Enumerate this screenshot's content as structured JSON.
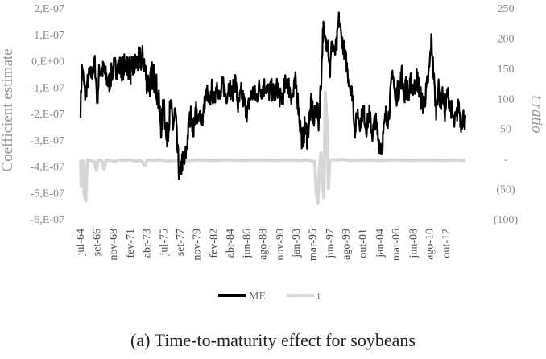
{
  "caption": "(a) Time-to-maturity effect for soybeans",
  "chart_data": {
    "type": "line",
    "ylabel_left": "Coefficient estimate",
    "ylabel_right": "t ratio",
    "left_ticks": [
      "2,E-07",
      "1,E-07",
      "0,E+00",
      "-1,E-07",
      "-2,E-07",
      "-3,E-07",
      "-4,E-07",
      "-5,E-07",
      "-6,E-07"
    ],
    "right_ticks": [
      "250",
      "200",
      "150",
      "100",
      "50",
      "-",
      "(50)",
      "(100)"
    ],
    "ylim_left": [
      -6e-07,
      2e-07
    ],
    "ylim_right": [
      -100,
      250
    ],
    "x_start_year": 1964.5,
    "x_end_year": 2015.5,
    "x_tick_labels": [
      "jul-64",
      "set-66",
      "nov-68",
      "fev-71",
      "abr-73",
      "jul-75",
      "set-77",
      "nov-79",
      "fev-82",
      "abr-84",
      "jun-86",
      "ago-88",
      "nov-90",
      "jan-93",
      "mar-95",
      "jun-97",
      "ago-99",
      "out-01",
      "jan-04",
      "mar-06",
      "jun-08",
      "ago-10",
      "out-12"
    ],
    "x_tick_years": [
      1964.5,
      1966.67,
      1968.83,
      1971.08,
      1973.25,
      1975.5,
      1977.67,
      1979.83,
      1982.08,
      1984.25,
      1986.42,
      1988.58,
      1990.83,
      1993.0,
      1995.17,
      1997.42,
      1999.58,
      2001.75,
      2004.0,
      2006.17,
      2008.42,
      2010.58,
      2012.75
    ],
    "legend_position": "bottom",
    "grid": false,
    "series": [
      {
        "name": "ME",
        "axis": "left",
        "color": "#000000",
        "points": [
          [
            1964.5,
            -1.8e-07
          ],
          [
            1964.7,
            -2e-08
          ],
          [
            1965.1,
            -1.3e-07
          ],
          [
            1965.6,
            -6e-08
          ],
          [
            1966.0,
            -5e-08
          ],
          [
            1966.4,
            -1e-08
          ],
          [
            1966.7,
            -1.5e-07
          ],
          [
            1967.0,
            -3e-08
          ],
          [
            1967.6,
            -4e-08
          ],
          [
            1968.2,
            -9e-08
          ],
          [
            1968.8,
            -3e-08
          ],
          [
            1969.5,
            -2e-08
          ],
          [
            1970.0,
            -3e-08
          ],
          [
            1970.6,
            -1e-08
          ],
          [
            1971.1,
            -4e-08
          ],
          [
            1971.6,
            -2e-08
          ],
          [
            1972.2,
            0.0
          ],
          [
            1972.8,
            1e-08
          ],
          [
            1973.2,
            -7e-08
          ],
          [
            1973.6,
            -9e-08
          ],
          [
            1974.0,
            -5e-08
          ],
          [
            1974.4,
            -8e-08
          ],
          [
            1974.8,
            -1.6e-07
          ],
          [
            1975.2,
            -2.6e-07
          ],
          [
            1975.5,
            -1.4e-07
          ],
          [
            1975.8,
            -3e-07
          ],
          [
            1976.1,
            -2.4e-07
          ],
          [
            1976.4,
            -1.7e-07
          ],
          [
            1976.7,
            -2.5e-07
          ],
          [
            1977.0,
            -1.9e-07
          ],
          [
            1977.3,
            -3.5e-07
          ],
          [
            1977.6,
            -4.5e-07
          ],
          [
            1977.9,
            -3.8e-07
          ],
          [
            1978.2,
            -3.9e-07
          ],
          [
            1978.5,
            -3.3e-07
          ],
          [
            1978.8,
            -2.4e-07
          ],
          [
            1979.1,
            -2e-07
          ],
          [
            1979.4,
            -2.7e-07
          ],
          [
            1979.7,
            -1.7e-07
          ],
          [
            1980.0,
            -2.4e-07
          ],
          [
            1980.3,
            -2e-07
          ],
          [
            1980.6,
            -2.3e-07
          ],
          [
            1980.9,
            -1.5e-07
          ],
          [
            1981.2,
            -1.2e-07
          ],
          [
            1981.5,
            -1.8e-07
          ],
          [
            1981.8,
            -1e-07
          ],
          [
            1982.1,
            -1.6e-07
          ],
          [
            1982.5,
            -8e-08
          ],
          [
            1982.9,
            -1.5e-07
          ],
          [
            1983.3,
            -8e-08
          ],
          [
            1983.7,
            -1.4e-07
          ],
          [
            1984.1,
            -9e-08
          ],
          [
            1984.5,
            -1.3e-07
          ],
          [
            1984.9,
            -7e-08
          ],
          [
            1985.3,
            -1.8e-07
          ],
          [
            1985.7,
            -1.2e-07
          ],
          [
            1986.1,
            -1.6e-07
          ],
          [
            1986.5,
            -2e-07
          ],
          [
            1986.9,
            -1.4e-07
          ],
          [
            1987.3,
            -1.2e-07
          ],
          [
            1987.7,
            -1.4e-07
          ],
          [
            1988.1,
            -1e-07
          ],
          [
            1988.5,
            -1.1e-07
          ],
          [
            1988.9,
            -9e-08
          ],
          [
            1989.3,
            -1.2e-07
          ],
          [
            1989.7,
            -1.1e-07
          ],
          [
            1990.1,
            -1.3e-07
          ],
          [
            1990.5,
            -1e-07
          ],
          [
            1990.9,
            -1.5e-07
          ],
          [
            1991.3,
            -1.2e-07
          ],
          [
            1991.7,
            -7e-08
          ],
          [
            1992.1,
            -1.1e-07
          ],
          [
            1992.5,
            -1.4e-07
          ],
          [
            1992.9,
            -8e-08
          ],
          [
            1993.2,
            -1.6e-07
          ],
          [
            1993.5,
            -2.5e-07
          ],
          [
            1993.8,
            -3.1e-07
          ],
          [
            1994.1,
            -2.5e-07
          ],
          [
            1994.4,
            -2.9e-07
          ],
          [
            1994.7,
            -2.2e-07
          ],
          [
            1995.0,
            -1.6e-07
          ],
          [
            1995.3,
            -2.4e-07
          ],
          [
            1995.6,
            -1.7e-07
          ],
          [
            1995.9,
            -2.3e-07
          ],
          [
            1996.2,
            -1e-07
          ],
          [
            1996.5,
            1.2e-07
          ],
          [
            1996.8,
            6e-08
          ],
          [
            1997.1,
            1e-07
          ],
          [
            1997.4,
            -5e-08
          ],
          [
            1997.7,
            8e-08
          ],
          [
            1998.0,
            2e-08
          ],
          [
            1998.3,
            6e-08
          ],
          [
            1998.6,
            1.6e-07
          ],
          [
            1998.9,
            9e-08
          ],
          [
            1999.2,
            5e-08
          ],
          [
            1999.5,
            1e-08
          ],
          [
            1999.8,
            -6e-08
          ],
          [
            2000.1,
            -1e-07
          ],
          [
            2000.4,
            -1.3e-07
          ],
          [
            2000.7,
            -2.8e-07
          ],
          [
            2001.0,
            -1.9e-07
          ],
          [
            2001.4,
            -2.4e-07
          ],
          [
            2001.8,
            -1.8e-07
          ],
          [
            2002.2,
            -2.6e-07
          ],
          [
            2002.6,
            -2e-07
          ],
          [
            2003.0,
            -2.8e-07
          ],
          [
            2003.4,
            -2.2e-07
          ],
          [
            2003.8,
            -3e-07
          ],
          [
            2004.2,
            -3.3e-07
          ],
          [
            2004.5,
            -2.7e-07
          ],
          [
            2004.8,
            -2e-07
          ],
          [
            2005.1,
            -2.2e-07
          ],
          [
            2005.4,
            -1.3e-07
          ],
          [
            2005.7,
            -3e-08
          ],
          [
            2006.0,
            -1.5e-07
          ],
          [
            2006.3,
            -1.2e-07
          ],
          [
            2006.6,
            -1e-07
          ],
          [
            2006.9,
            -5e-08
          ],
          [
            2007.2,
            -1.3e-07
          ],
          [
            2007.5,
            -9e-08
          ],
          [
            2007.8,
            -1.4e-07
          ],
          [
            2008.1,
            -8e-08
          ],
          [
            2008.5,
            -1.1e-07
          ],
          [
            2008.9,
            -6e-08
          ],
          [
            2009.3,
            -1.3e-07
          ],
          [
            2009.7,
            -1.7e-07
          ],
          [
            2010.1,
            -1.2e-07
          ],
          [
            2010.5,
            -4e-08
          ],
          [
            2010.8,
            8e-08
          ],
          [
            2011.1,
            -6e-08
          ],
          [
            2011.4,
            -1.9e-07
          ],
          [
            2011.7,
            -1e-07
          ],
          [
            2012.0,
            -1.6e-07
          ],
          [
            2012.3,
            -1.3e-07
          ],
          [
            2012.6,
            -2e-07
          ],
          [
            2012.9,
            -1.2e-07
          ],
          [
            2013.2,
            -1.6e-07
          ],
          [
            2013.5,
            -1.9e-07
          ],
          [
            2013.8,
            -2.4e-07
          ],
          [
            2014.1,
            -2.1e-07
          ],
          [
            2014.4,
            -1.7e-07
          ],
          [
            2014.7,
            -2.4e-07
          ],
          [
            2015.0,
            -2.1e-07
          ],
          [
            2015.3,
            -2.4e-07
          ]
        ],
        "spread": [
          [
            1964.5,
            3.5e-08
          ],
          [
            1975.0,
            6e-08
          ],
          [
            1977.0,
            5e-08
          ],
          [
            1980.0,
            3.5e-08
          ],
          [
            1993.0,
            4.5e-08
          ],
          [
            1996.0,
            5e-08
          ],
          [
            2000.0,
            3e-08
          ],
          [
            2004.0,
            4e-08
          ],
          [
            2008.0,
            4.5e-08
          ],
          [
            2015.3,
            3.5e-08
          ]
        ]
      },
      {
        "name": "t",
        "axis": "right",
        "color": "#d6d6d6",
        "points": [
          [
            1964.5,
            -2
          ],
          [
            1964.6,
            -45
          ],
          [
            1964.8,
            -3
          ],
          [
            1965.0,
            -60
          ],
          [
            1965.2,
            -70
          ],
          [
            1965.4,
            -2
          ],
          [
            1965.8,
            -3
          ],
          [
            1966.3,
            -5
          ],
          [
            1966.6,
            -20
          ],
          [
            1966.8,
            -2
          ],
          [
            1967.3,
            -3
          ],
          [
            1967.6,
            -18
          ],
          [
            1967.9,
            -2
          ],
          [
            1968.5,
            -3
          ],
          [
            1969.0,
            -5
          ],
          [
            1969.5,
            -2
          ],
          [
            1970.2,
            -3
          ],
          [
            1971.0,
            -2
          ],
          [
            1971.8,
            -4
          ],
          [
            1972.5,
            -3
          ],
          [
            1973.0,
            -12
          ],
          [
            1973.3,
            -2
          ],
          [
            1974.0,
            -3
          ],
          [
            1975.0,
            -2
          ],
          [
            1976.0,
            -4
          ],
          [
            1977.0,
            -3
          ],
          [
            1978.0,
            -4
          ],
          [
            1979.0,
            -3
          ],
          [
            1980.0,
            -2
          ],
          [
            1982.0,
            -3
          ],
          [
            1984.0,
            -2
          ],
          [
            1986.0,
            -3
          ],
          [
            1988.0,
            -2
          ],
          [
            1990.0,
            -3
          ],
          [
            1992.0,
            -2
          ],
          [
            1993.5,
            -3
          ],
          [
            1994.5,
            -2
          ],
          [
            1995.4,
            -5
          ],
          [
            1995.6,
            -55
          ],
          [
            1995.8,
            -75
          ],
          [
            1996.0,
            -20
          ],
          [
            1996.2,
            10
          ],
          [
            1996.4,
            -40
          ],
          [
            1996.6,
            -65
          ],
          [
            1996.8,
            110
          ],
          [
            1997.0,
            60
          ],
          [
            1997.2,
            -50
          ],
          [
            1997.4,
            -3
          ],
          [
            1997.6,
            -2
          ],
          [
            1998.5,
            -2
          ],
          [
            1999.0,
            -1
          ],
          [
            1999.5,
            -2
          ],
          [
            2000.0,
            -3
          ],
          [
            2002.0,
            -2
          ],
          [
            2004.0,
            -3
          ],
          [
            2006.0,
            -2
          ],
          [
            2008.0,
            -3
          ],
          [
            2010.0,
            -2
          ],
          [
            2012.0,
            -3
          ],
          [
            2014.0,
            -2
          ],
          [
            2015.3,
            -3
          ]
        ]
      }
    ]
  }
}
